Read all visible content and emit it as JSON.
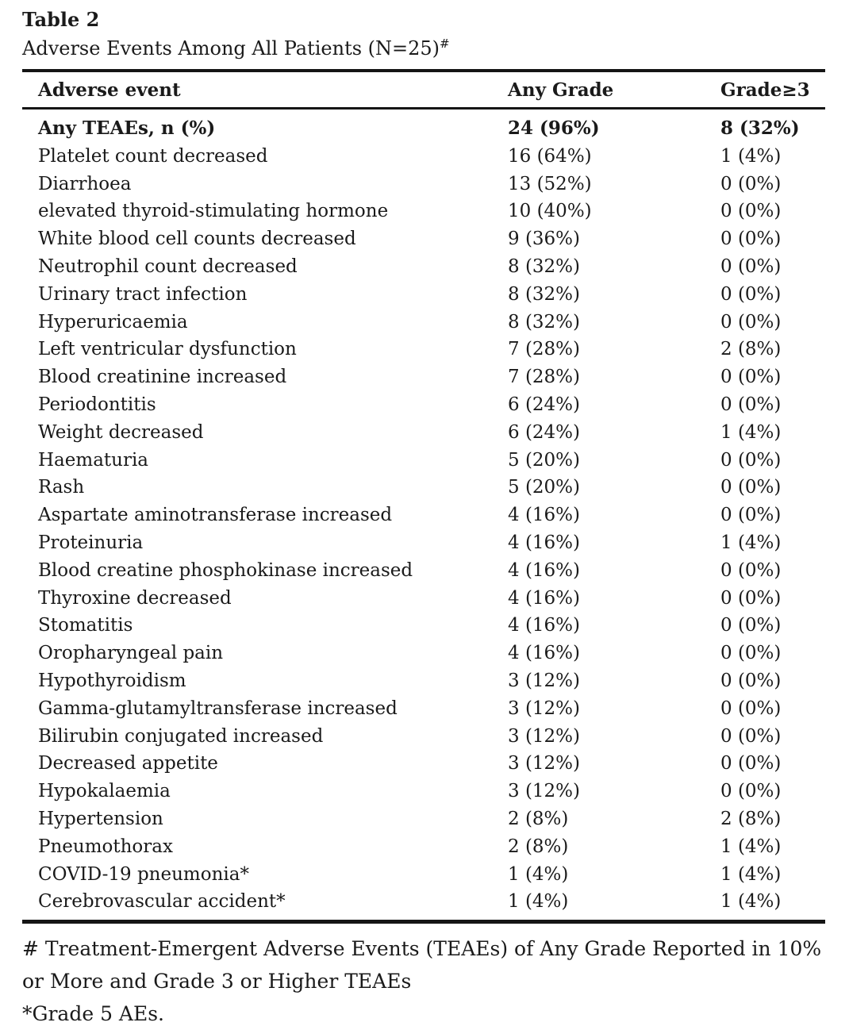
{
  "caption": {
    "label": "Table 2",
    "title": "Adverse Events Among All Patients (N=25)",
    "footnote_marker": "#"
  },
  "table": {
    "headers": [
      "Adverse event",
      "Any Grade",
      "Grade≥3"
    ],
    "rows": [
      {
        "adverse_event": "Any TEAEs, n (%)",
        "any_grade": "24 (96%)",
        "grade_ge_3": "8 (32%)",
        "bold": true
      },
      {
        "adverse_event": "Platelet count decreased",
        "any_grade": "16 (64%)",
        "grade_ge_3": "1 (4%)",
        "bold": false
      },
      {
        "adverse_event": "Diarrhoea",
        "any_grade": "13 (52%)",
        "grade_ge_3": "0 (0%)",
        "bold": false
      },
      {
        "adverse_event": "elevated thyroid-stimulating hormone",
        "any_grade": "10 (40%)",
        "grade_ge_3": "0 (0%)",
        "bold": false
      },
      {
        "adverse_event": "White blood cell counts decreased",
        "any_grade": "9 (36%)",
        "grade_ge_3": "0 (0%)",
        "bold": false
      },
      {
        "adverse_event": "Neutrophil count decreased",
        "any_grade": "8 (32%)",
        "grade_ge_3": "0 (0%)",
        "bold": false
      },
      {
        "adverse_event": "Urinary tract infection",
        "any_grade": "8 (32%)",
        "grade_ge_3": "0 (0%)",
        "bold": false
      },
      {
        "adverse_event": "Hyperuricaemia",
        "any_grade": "8 (32%)",
        "grade_ge_3": "0 (0%)",
        "bold": false
      },
      {
        "adverse_event": "Left ventricular dysfunction",
        "any_grade": "7 (28%)",
        "grade_ge_3": "2 (8%)",
        "bold": false
      },
      {
        "adverse_event": "Blood creatinine increased",
        "any_grade": "7 (28%)",
        "grade_ge_3": "0 (0%)",
        "bold": false
      },
      {
        "adverse_event": "Periodontitis",
        "any_grade": "6 (24%)",
        "grade_ge_3": "0 (0%)",
        "bold": false
      },
      {
        "adverse_event": "Weight decreased",
        "any_grade": "6 (24%)",
        "grade_ge_3": "1 (4%)",
        "bold": false
      },
      {
        "adverse_event": "Haematuria",
        "any_grade": "5 (20%)",
        "grade_ge_3": "0 (0%)",
        "bold": false
      },
      {
        "adverse_event": "Rash",
        "any_grade": "5 (20%)",
        "grade_ge_3": "0 (0%)",
        "bold": false
      },
      {
        "adverse_event": "Aspartate aminotransferase increased",
        "any_grade": "4 (16%)",
        "grade_ge_3": "0 (0%)",
        "bold": false
      },
      {
        "adverse_event": "Proteinuria",
        "any_grade": "4 (16%)",
        "grade_ge_3": "1 (4%)",
        "bold": false
      },
      {
        "adverse_event": "Blood creatine phosphokinase increased",
        "any_grade": "4 (16%)",
        "grade_ge_3": "0 (0%)",
        "bold": false
      },
      {
        "adverse_event": "Thyroxine decreased",
        "any_grade": "4 (16%)",
        "grade_ge_3": "0 (0%)",
        "bold": false
      },
      {
        "adverse_event": "Stomatitis",
        "any_grade": "4 (16%)",
        "grade_ge_3": "0 (0%)",
        "bold": false
      },
      {
        "adverse_event": "Oropharyngeal pain",
        "any_grade": "4 (16%)",
        "grade_ge_3": "0 (0%)",
        "bold": false
      },
      {
        "adverse_event": "Hypothyroidism",
        "any_grade": "3 (12%)",
        "grade_ge_3": "0 (0%)",
        "bold": false
      },
      {
        "adverse_event": "Gamma-glutamyltransferase increased",
        "any_grade": "3 (12%)",
        "grade_ge_3": "0 (0%)",
        "bold": false
      },
      {
        "adverse_event": "Bilirubin conjugated increased",
        "any_grade": "3 (12%)",
        "grade_ge_3": "0 (0%)",
        "bold": false
      },
      {
        "adverse_event": "Decreased appetite",
        "any_grade": "3 (12%)",
        "grade_ge_3": "0 (0%)",
        "bold": false
      },
      {
        "adverse_event": "Hypokalaemia",
        "any_grade": "3 (12%)",
        "grade_ge_3": "0 (0%)",
        "bold": false
      },
      {
        "adverse_event": "Hypertension",
        "any_grade": "2 (8%)",
        "grade_ge_3": "2 (8%)",
        "bold": false
      },
      {
        "adverse_event": "Pneumothorax",
        "any_grade": "2 (8%)",
        "grade_ge_3": "1 (4%)",
        "bold": false
      },
      {
        "adverse_event": "COVID-19 pneumonia*",
        "any_grade": "1 (4%)",
        "grade_ge_3": "1 (4%)",
        "bold": false
      },
      {
        "adverse_event": "Cerebrovascular accident*",
        "any_grade": "1 (4%)",
        "grade_ge_3": "1 (4%)",
        "bold": false
      }
    ]
  },
  "footnotes": {
    "lines": [
      "# Treatment-Emergent Adverse Events (TEAEs) of Any Grade Reported in 10%",
      "or More and Grade 3 or Higher TEAEs",
      "*Grade 5 AEs."
    ]
  },
  "colors": {
    "text": "#1a1a1a",
    "rule": "#151515",
    "background": "#ffffff"
  }
}
